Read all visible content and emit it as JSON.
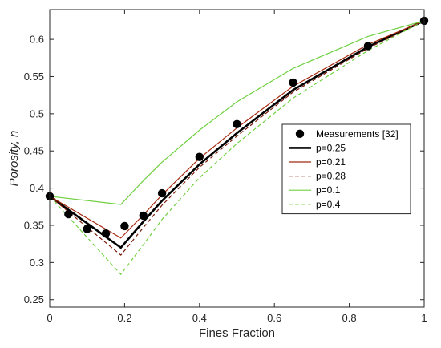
{
  "chart_data": {
    "type": "line",
    "xlabel": "Fines Fraction",
    "ylabel": "Porosity, n",
    "ylabel_italic_parts": [
      "Porosity",
      "n"
    ],
    "xlim": [
      0,
      1
    ],
    "ylim": [
      0.24,
      0.64
    ],
    "xticks": [
      0,
      0.2,
      0.4,
      0.6,
      0.8,
      1
    ],
    "xtick_labels": [
      "0",
      "0.2",
      "0.4",
      "0.6",
      "0.8",
      "1"
    ],
    "yticks": [
      0.25,
      0.3,
      0.35,
      0.4,
      0.45,
      0.5,
      0.55,
      0.6
    ],
    "ytick_labels": [
      "0.25",
      "0.3",
      "0.35",
      "0.4",
      "0.45",
      "0.5",
      "0.55",
      "0.6"
    ],
    "grid": false,
    "legend_position": "right",
    "measurements": {
      "name": "Measurements [32]",
      "color": "#000000",
      "x": [
        0,
        0.05,
        0.1,
        0.15,
        0.2,
        0.25,
        0.3,
        0.4,
        0.5,
        0.65,
        0.85,
        1
      ],
      "y": [
        0.389,
        0.365,
        0.345,
        0.339,
        0.349,
        0.363,
        0.393,
        0.442,
        0.486,
        0.542,
        0.591,
        0.625
      ]
    },
    "series": [
      {
        "name": "p=0.25",
        "color": "#000000",
        "style": "solid",
        "weight": "thick",
        "x": [
          0,
          0.19,
          0.25,
          0.3,
          0.4,
          0.5,
          0.65,
          0.85,
          1
        ],
        "y": [
          0.389,
          0.32,
          0.355,
          0.383,
          0.432,
          0.474,
          0.532,
          0.59,
          0.625
        ]
      },
      {
        "name": "p=0.21",
        "color": "#a52a0f",
        "style": "solid",
        "weight": "thin",
        "x": [
          0,
          0.19,
          0.25,
          0.3,
          0.4,
          0.5,
          0.65,
          0.85,
          1
        ],
        "y": [
          0.389,
          0.333,
          0.364,
          0.391,
          0.44,
          0.481,
          0.537,
          0.593,
          0.625
        ]
      },
      {
        "name": "p=0.28",
        "color": "#7a1a0a",
        "style": "dashed",
        "weight": "thin",
        "x": [
          0,
          0.19,
          0.25,
          0.3,
          0.4,
          0.5,
          0.65,
          0.85,
          1
        ],
        "y": [
          0.389,
          0.31,
          0.347,
          0.377,
          0.428,
          0.47,
          0.529,
          0.588,
          0.625
        ]
      },
      {
        "name": "p=0.1",
        "color": "#6fd040",
        "style": "solid",
        "weight": "thin",
        "x": [
          0,
          0.19,
          0.25,
          0.3,
          0.4,
          0.5,
          0.65,
          0.85,
          1
        ],
        "y": [
          0.389,
          0.378,
          0.41,
          0.435,
          0.478,
          0.516,
          0.561,
          0.604,
          0.625
        ]
      },
      {
        "name": "p=0.4",
        "color": "#6fd040",
        "style": "dashed",
        "weight": "thin",
        "x": [
          0,
          0.19,
          0.25,
          0.3,
          0.4,
          0.5,
          0.65,
          0.85,
          1
        ],
        "y": [
          0.389,
          0.284,
          0.324,
          0.358,
          0.414,
          0.46,
          0.521,
          0.585,
          0.625
        ]
      }
    ]
  }
}
